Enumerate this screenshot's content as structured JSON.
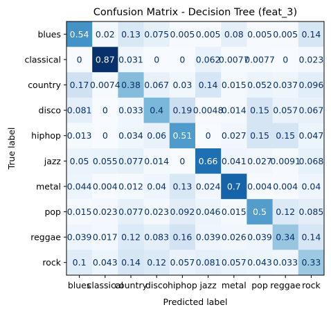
{
  "chart_data": {
    "type": "heatmap",
    "title": "Confusion Matrix - Decision Tree (feat_3)",
    "xlabel": "Predicted label",
    "ylabel": "True label",
    "x_categories": [
      "blues",
      "classical",
      "country",
      "disco",
      "hiphop",
      "jazz",
      "metal",
      "pop",
      "reggae",
      "rock"
    ],
    "y_categories": [
      "blues",
      "classical",
      "country",
      "disco",
      "hiphop",
      "jazz",
      "metal",
      "pop",
      "reggae",
      "rock"
    ],
    "values": [
      [
        "0.54",
        "0.02",
        "0.13",
        "0.075",
        "0.005",
        "0.005",
        "0.08",
        "0.005",
        "0.005",
        "0.14"
      ],
      [
        "0",
        "0.87",
        "0.031",
        "0",
        "0",
        "0.062",
        "0.0077",
        "0.0077",
        "0",
        "0.023"
      ],
      [
        "0.17",
        "0.0074",
        "0.38",
        "0.067",
        "0.03",
        "0.14",
        "0.015",
        "0.052",
        "0.037",
        "0.096"
      ],
      [
        "0.081",
        "0",
        "0.033",
        "0.4",
        "0.19",
        "0.0048",
        "0.014",
        "0.15",
        "0.057",
        "0.067"
      ],
      [
        "0.013",
        "0",
        "0.034",
        "0.06",
        "0.51",
        "0",
        "0.027",
        "0.15",
        "0.15",
        "0.047"
      ],
      [
        "0.05",
        "0.055",
        "0.077",
        "0.014",
        "0",
        "0.66",
        "0.041",
        "0.027",
        "0.0091",
        "0.068"
      ],
      [
        "0.044",
        "0.004",
        "0.012",
        "0.04",
        "0.13",
        "0.024",
        "0.7",
        "0.004",
        "0.004",
        "0.04"
      ],
      [
        "0.015",
        "0.023",
        "0.077",
        "0.023",
        "0.092",
        "0.046",
        "0.015",
        "0.5",
        "0.12",
        "0.085"
      ],
      [
        "0.039",
        "0.017",
        "0.12",
        "0.083",
        "0.16",
        "0.039",
        "0.026",
        "0.039",
        "0.34",
        "0.14"
      ],
      [
        "0.1",
        "0.043",
        "0.14",
        "0.12",
        "0.057",
        "0.081",
        "0.057",
        "0.043",
        "0.033",
        "0.33"
      ]
    ],
    "colormap": "Blues",
    "value_range": [
      0,
      0.87
    ],
    "grid": false,
    "legend": "none"
  }
}
